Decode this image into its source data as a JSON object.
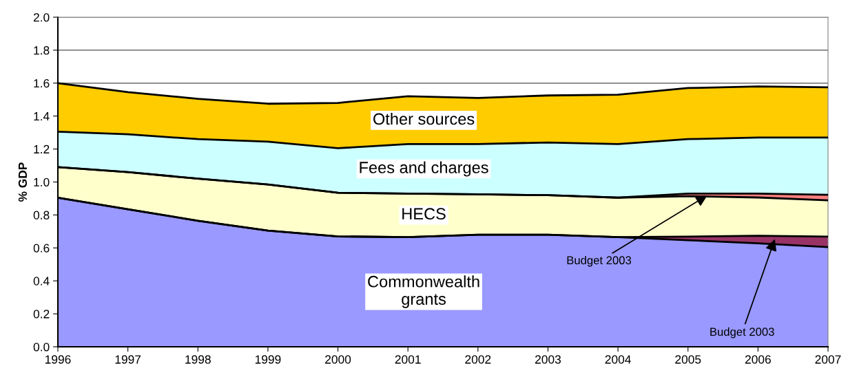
{
  "chart_data": {
    "type": "area",
    "stacked": true,
    "ylabel": "% GDP",
    "x": [
      1996,
      1997,
      1998,
      1999,
      2000,
      2001,
      2002,
      2003,
      2004,
      2005,
      2006,
      2007
    ],
    "series": [
      {
        "name": "Commonwealth\ngrants",
        "color": "#9999ff",
        "values": [
          0.905,
          0.835,
          0.765,
          0.705,
          0.67,
          0.665,
          0.68,
          0.68,
          0.665,
          0.647,
          0.628,
          0.605
        ]
      },
      {
        "color": "#993366",
        "values": [
          0,
          0,
          0,
          0,
          0,
          0,
          0,
          0,
          0,
          0.022,
          0.046,
          0.064
        ]
      },
      {
        "name": "HECS",
        "color": "#ffffcc",
        "values": [
          0.185,
          0.225,
          0.255,
          0.28,
          0.265,
          0.265,
          0.245,
          0.24,
          0.24,
          0.245,
          0.232,
          0.22
        ]
      },
      {
        "color": "#ff8080",
        "values": [
          0,
          0,
          0,
          0,
          0,
          0,
          0,
          0,
          0,
          0.016,
          0.024,
          0.033
        ]
      },
      {
        "name": "Fees and charges",
        "color": "#ccffff",
        "values": [
          0.215,
          0.23,
          0.24,
          0.26,
          0.27,
          0.3,
          0.305,
          0.32,
          0.325,
          0.33,
          0.34,
          0.348
        ]
      },
      {
        "name": "Other sources",
        "color": "#ffcc00",
        "values": [
          0.295,
          0.255,
          0.245,
          0.23,
          0.275,
          0.29,
          0.28,
          0.285,
          0.3,
          0.31,
          0.31,
          0.305
        ]
      }
    ],
    "annotations": [
      {
        "text": "Budget 2003",
        "x": 2005.3,
        "y": 0.925
      },
      {
        "text": "Budget 2003",
        "x": 2006.25,
        "y": 0.665
      }
    ],
    "xlim": [
      1996,
      2007
    ],
    "xticks": [
      1996,
      1997,
      1998,
      1999,
      2000,
      2001,
      2002,
      2003,
      2004,
      2005,
      2006,
      2007
    ],
    "ylim": [
      0,
      2
    ],
    "yticks": [
      {
        "value": 0,
        "label": "0.0"
      },
      {
        "value": 0.2,
        "label": "0.2"
      },
      {
        "value": 0.4,
        "label": "0.4"
      },
      {
        "value": 0.6,
        "label": "0.6"
      },
      {
        "value": 0.8,
        "label": "0.8"
      },
      {
        "value": 1,
        "label": "1.0"
      },
      {
        "value": 1.2,
        "label": "1.2"
      },
      {
        "value": 1.4,
        "label": "1.4"
      },
      {
        "value": 1.6,
        "label": "1.6"
      },
      {
        "value": 1.8,
        "label": "1.8"
      },
      {
        "value": 2,
        "label": "2.0"
      }
    ],
    "grid": "y",
    "legend": false
  }
}
